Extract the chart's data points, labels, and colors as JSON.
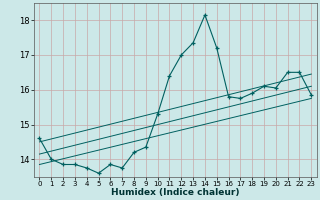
{
  "xlabel": "Humidex (Indice chaleur)",
  "bg_color": "#cce8e8",
  "grid_color": "#c8a8a8",
  "line_color": "#006060",
  "xlim": [
    -0.5,
    23.5
  ],
  "ylim": [
    13.5,
    18.5
  ],
  "yticks": [
    14,
    15,
    16,
    17,
    18
  ],
  "xticks": [
    0,
    1,
    2,
    3,
    4,
    5,
    6,
    7,
    8,
    9,
    10,
    11,
    12,
    13,
    14,
    15,
    16,
    17,
    18,
    19,
    20,
    21,
    22,
    23
  ],
  "main_x": [
    0,
    1,
    2,
    3,
    4,
    5,
    6,
    7,
    8,
    9,
    10,
    11,
    12,
    13,
    14,
    15,
    16,
    17,
    18,
    19,
    20,
    21,
    22,
    23
  ],
  "main_y": [
    14.6,
    14.0,
    13.85,
    13.85,
    13.75,
    13.6,
    13.85,
    13.75,
    14.2,
    14.35,
    15.3,
    16.4,
    17.0,
    17.35,
    18.15,
    17.2,
    15.8,
    15.75,
    15.9,
    16.1,
    16.05,
    16.5,
    16.5,
    15.85
  ],
  "line2_x": [
    0,
    23
  ],
  "line2_y": [
    13.85,
    15.75
  ],
  "line3_x": [
    0,
    23
  ],
  "line3_y": [
    14.15,
    16.1
  ],
  "line4_x": [
    0,
    23
  ],
  "line4_y": [
    14.5,
    16.45
  ]
}
